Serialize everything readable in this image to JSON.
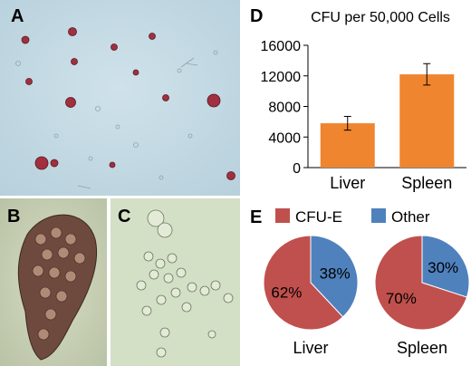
{
  "panel_labels": {
    "a": "A",
    "b": "B",
    "c": "C",
    "d": "D",
    "e": "E"
  },
  "chart_data": [
    {
      "type": "bar",
      "title": "CFU per 50,000 Cells",
      "categories": [
        "Liver",
        "Spleen"
      ],
      "values": [
        5800,
        12200
      ],
      "error": [
        900,
        1400
      ],
      "ylim": [
        0,
        16000
      ],
      "yticks": [
        "0",
        "4000",
        "8000",
        "12000",
        "16000"
      ],
      "xlabel": "",
      "ylabel": "",
      "grid": false,
      "bar_color": "#F0852F"
    },
    {
      "type": "pie",
      "legend": [
        {
          "name": "CFU-E",
          "color": "#C0504D"
        },
        {
          "name": "Other",
          "color": "#4F81BD"
        }
      ],
      "legend_placement": "top",
      "pies": [
        {
          "label": "Liver",
          "slices": [
            {
              "name": "CFU-E",
              "value": 62,
              "text": "62%"
            },
            {
              "name": "Other",
              "value": 38,
              "text": "38%"
            }
          ]
        },
        {
          "label": "Spleen",
          "slices": [
            {
              "name": "CFU-E",
              "value": 70,
              "text": "70%"
            },
            {
              "name": "Other",
              "value": 30,
              "text": "30%"
            }
          ]
        }
      ]
    }
  ]
}
